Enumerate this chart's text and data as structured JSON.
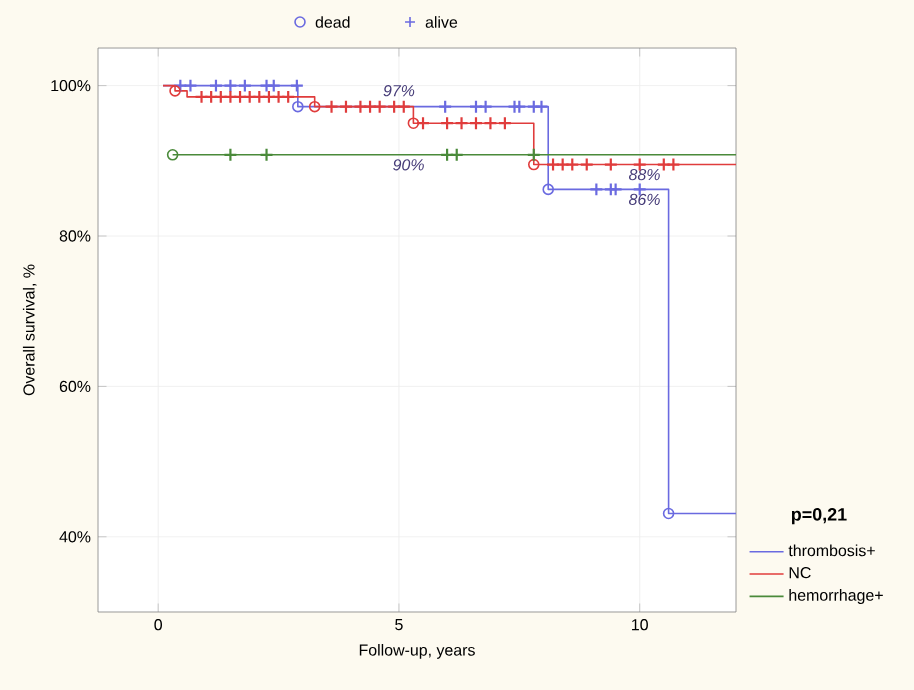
{
  "chart_data": {
    "type": "step",
    "xlabel": "Follow-up, years",
    "ylabel": "Overall survival, %",
    "xlim": [
      -1.25,
      12
    ],
    "ylim": [
      30,
      105
    ],
    "xticks": [
      0,
      5,
      10
    ],
    "yticks": [
      {
        "value": 40,
        "label": "40%"
      },
      {
        "value": 60,
        "label": "60%"
      },
      {
        "value": 80,
        "label": "80%"
      },
      {
        "value": 100,
        "label": "100%"
      }
    ],
    "grid": true,
    "legend": "right",
    "series": [
      {
        "name": "thrombosis+",
        "color": "#6a6ae0",
        "x": [
          0.1,
          2.9,
          8.1,
          10.6,
          12
        ],
        "values": [
          100,
          97.2,
          86.2,
          43.1,
          43.1
        ]
      },
      {
        "name": "NC",
        "color": "#e03c3c",
        "x": [
          0.1,
          0.35,
          0.6,
          3.25,
          5.3,
          7.8,
          12
        ],
        "values": [
          100,
          99.3,
          98.5,
          97.2,
          95,
          89.5,
          89.5
        ]
      },
      {
        "name": "hemorrhage+",
        "color": "#4a8a3a",
        "x": [
          0.3,
          12
        ],
        "values": [
          90.8,
          90.8
        ]
      },
      {
        "name": "dead",
        "type": "scatter",
        "marker": "circle",
        "color": "#6a6ae0",
        "x": [
          2.9,
          8.1,
          10.6
        ],
        "values": [
          97.2,
          86.2,
          43.1
        ]
      },
      {
        "name": "alive",
        "type": "scatter",
        "marker": "cross",
        "color": "#6a6ae0",
        "x": [
          0.46,
          0.67,
          1.2,
          1.5,
          1.8,
          2.25,
          2.4,
          2.88,
          5.96,
          6.6,
          6.8,
          7.4,
          7.5,
          7.8,
          7.96,
          9.1,
          9.4,
          9.5,
          10.0
        ],
        "values": [
          100,
          100,
          100,
          100,
          100,
          100,
          100,
          100,
          97.2,
          97.2,
          97.2,
          97.2,
          97.2,
          97.2,
          97.2,
          86.2,
          86.2,
          86.2,
          86.2
        ]
      },
      {
        "type": "scatter",
        "marker": "circle",
        "color": "#e03c3c",
        "x": [
          0.35,
          3.25,
          5.3,
          7.8
        ],
        "values": [
          99.3,
          97.2,
          95,
          89.5
        ]
      },
      {
        "type": "scatter",
        "marker": "cross",
        "color": "#e03c3c",
        "x": [
          0.9,
          1.1,
          1.3,
          1.5,
          1.7,
          1.9,
          2.1,
          2.3,
          2.5,
          2.7,
          3.6,
          3.9,
          4.2,
          4.4,
          4.6,
          4.9,
          5.1,
          5.5,
          6.0,
          6.3,
          6.6,
          6.9,
          7.2,
          8.2,
          8.4,
          8.6,
          8.9,
          9.4,
          10.0,
          10.5,
          10.7
        ],
        "values": [
          98.5,
          98.5,
          98.5,
          98.5,
          98.5,
          98.5,
          98.5,
          98.5,
          98.5,
          98.5,
          97.2,
          97.2,
          97.2,
          97.2,
          97.2,
          97.2,
          97.2,
          95,
          95,
          95,
          95,
          95,
          95,
          89.5,
          89.5,
          89.5,
          89.5,
          89.5,
          89.5,
          89.5,
          89.5
        ]
      },
      {
        "type": "scatter",
        "marker": "circle",
        "color": "#4a8a3a",
        "x": [
          0.3
        ],
        "values": [
          90.8
        ]
      },
      {
        "type": "scatter",
        "marker": "cross",
        "color": "#4a8a3a",
        "x": [
          1.5,
          2.25,
          6.0,
          6.2,
          7.8
        ],
        "values": [
          90.8,
          90.8,
          90.8,
          90.8,
          90.8
        ]
      }
    ],
    "annotations": [
      {
        "text": "*97%*",
        "x": 5.0,
        "y": 97.2
      },
      {
        "text": "*90%*",
        "x": 5.2,
        "y": 90.8
      },
      {
        "text": "*88%*",
        "x": 10.1,
        "y": 89.5
      },
      {
        "text": "*86%*",
        "x": 10.1,
        "y": 86.2
      },
      "**p=0,21**"
    ]
  }
}
